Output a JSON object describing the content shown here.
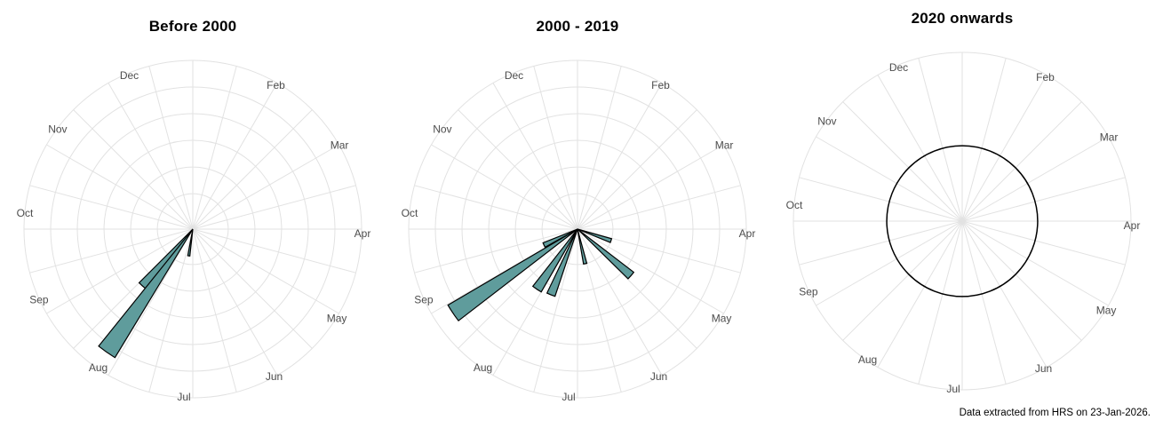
{
  "caption": "Data extracted from HRS on 23-Jan-2026.",
  "colors": {
    "petal_fill": "#5f9c9c",
    "petal_stroke": "#000000",
    "grid": "#e2e2e2",
    "month_label": "#4d4d4d",
    "reference_circle": "#000000",
    "background": "#ffffff",
    "title": "#000000"
  },
  "chart_data": [
    {
      "type": "rose",
      "title": "Before 2000",
      "angular_unit": "month of year",
      "angle_convention": "degrees clockwise from top (Jan at 0)",
      "month_labels": [
        "Feb",
        "Mar",
        "Apr",
        "May",
        "Jun",
        "Jul",
        "Aug",
        "Sep",
        "Oct",
        "Nov",
        "Dec"
      ],
      "spoke_step_deg": 15,
      "ring_fracs": [
        0.21,
        0.368,
        0.526,
        0.684,
        0.842,
        1.0
      ],
      "petals": [
        {
          "angle_deg": 221.5,
          "length_frac": 0.45,
          "width_deg": 7.0
        },
        {
          "angle_deg": 215.0,
          "length_frac": 0.89,
          "width_deg": 7.6
        },
        {
          "angle_deg": 188.5,
          "length_frac": 0.16,
          "width_deg": 4.5
        }
      ],
      "reference_circle_frac": null
    },
    {
      "type": "rose",
      "title": "2000 - 2019",
      "angular_unit": "month of year",
      "angle_convention": "degrees clockwise from top (Jan at 0)",
      "month_labels": [
        "Feb",
        "Mar",
        "Apr",
        "May",
        "Jun",
        "Jul",
        "Aug",
        "Sep",
        "Oct",
        "Nov",
        "Dec"
      ],
      "spoke_step_deg": 15,
      "ring_fracs": [
        0.21,
        0.368,
        0.526,
        0.684,
        0.842,
        1.0
      ],
      "petals": [
        {
          "angle_deg": 244.5,
          "length_frac": 0.22,
          "width_deg": 7.5
        },
        {
          "angle_deg": 236.0,
          "length_frac": 0.89,
          "width_deg": 7.2
        },
        {
          "angle_deg": 214.0,
          "length_frac": 0.43,
          "width_deg": 8.0
        },
        {
          "angle_deg": 202.0,
          "length_frac": 0.42,
          "width_deg": 7.0
        },
        {
          "angle_deg": 167.5,
          "length_frac": 0.21,
          "width_deg": 5.5
        },
        {
          "angle_deg": 131.0,
          "length_frac": 0.42,
          "width_deg": 7.0
        },
        {
          "angle_deg": 109.0,
          "length_frac": 0.21,
          "width_deg": 6.5
        }
      ],
      "reference_circle_frac": null
    },
    {
      "type": "rose",
      "title": "2020 onwards",
      "angular_unit": "month of year",
      "angle_convention": "degrees clockwise from top (Jan at 0)",
      "month_labels": [
        "Feb",
        "Mar",
        "Apr",
        "May",
        "Jun",
        "Jul",
        "Aug",
        "Sep",
        "Oct",
        "Nov",
        "Dec"
      ],
      "spoke_step_deg": 15,
      "ring_fracs": [
        1.0
      ],
      "petals": [],
      "reference_circle_frac": 0.447
    }
  ]
}
